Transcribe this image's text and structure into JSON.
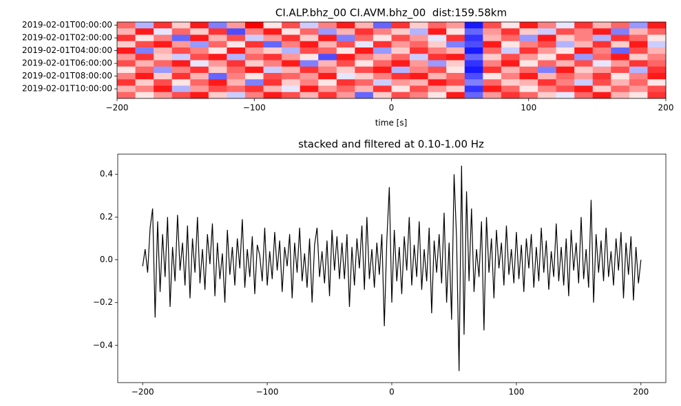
{
  "chart_data": [
    {
      "type": "heatmap",
      "title": "CI.ALP.bhz_00 CI.AVM.bhz_00  dist:159.58km",
      "x_label": "time [s]",
      "colormap": "bwr",
      "categories": [
        "2019-02-01T00:00:00",
        null,
        "2019-02-01T02:00:00",
        null,
        "2019-02-01T04:00:00",
        null,
        "2019-02-01T06:00:00",
        null,
        "2019-02-01T08:00:00",
        null,
        "2019-02-01T10:00:00",
        null
      ],
      "xlim": [
        -200,
        200
      ],
      "xticks": [
        {
          "value": -200,
          "label": "−200"
        },
        {
          "value": -100,
          "label": "−100"
        },
        0,
        100,
        200
      ],
      "values": [
        [
          0.6,
          -0.3,
          0.8,
          0.2,
          0.9,
          -0.5,
          0.4,
          1.0,
          0.1,
          0.7,
          -0.2,
          0.5,
          0.9,
          0.3,
          -0.6,
          0.8,
          0.2,
          0.6,
          0.4,
          -0.9,
          0.7,
          0.1,
          0.9,
          0.5,
          -0.1,
          0.8,
          0.3,
          0.6,
          -0.4,
          0.9
        ],
        [
          0.3,
          0.9,
          -0.1,
          0.6,
          0.2,
          0.8,
          -0.7,
          0.5,
          0.9,
          0.1,
          0.6,
          -0.4,
          0.3,
          0.8,
          0.5,
          0.2,
          -0.3,
          0.9,
          0.1,
          -0.6,
          0.4,
          0.8,
          0.2,
          -0.2,
          0.7,
          0.5,
          0.9,
          -0.5,
          0.3,
          0.6
        ],
        [
          0.8,
          0.1,
          0.5,
          -0.6,
          0.9,
          0.3,
          0.7,
          -0.2,
          0.4,
          0.8,
          0.2,
          0.9,
          -0.5,
          0.6,
          0.1,
          0.7,
          0.4,
          -0.1,
          0.8,
          -0.8,
          0.3,
          0.6,
          -0.4,
          0.9,
          0.2,
          0.5,
          -0.3,
          0.8,
          0.6,
          0.1
        ],
        [
          0.2,
          0.7,
          0.9,
          0.4,
          -0.4,
          0.6,
          0.1,
          0.8,
          -0.6,
          0.5,
          0.9,
          0.3,
          0.7,
          -0.1,
          0.8,
          0.4,
          0.6,
          0.2,
          -0.5,
          -0.7,
          0.9,
          0.1,
          0.5,
          0.7,
          -0.3,
          0.3,
          0.8,
          0.2,
          0.9,
          -0.2
        ],
        [
          0.9,
          -0.5,
          0.3,
          0.7,
          0.5,
          0.1,
          0.9,
          0.4,
          0.2,
          -0.3,
          0.7,
          0.6,
          0.1,
          0.9,
          -0.4,
          0.2,
          0.8,
          0.5,
          0.3,
          -0.9,
          0.6,
          -0.2,
          0.8,
          0.4,
          0.1,
          0.9,
          0.5,
          -0.6,
          0.7,
          0.3
        ],
        [
          0.4,
          0.8,
          0.2,
          -0.2,
          0.7,
          0.9,
          -0.3,
          0.6,
          0.8,
          0.4,
          0.1,
          -0.7,
          0.9,
          0.5,
          0.3,
          0.6,
          -0.2,
          0.8,
          0.9,
          -0.6,
          0.2,
          0.7,
          0.4,
          0.1,
          0.8,
          -0.4,
          0.6,
          0.9,
          0.2,
          0.5
        ],
        [
          0.7,
          0.3,
          0.6,
          0.9,
          -0.1,
          0.4,
          0.8,
          0.2,
          0.5,
          0.9,
          -0.5,
          0.3,
          0.7,
          0.1,
          0.6,
          0.9,
          0.4,
          -0.4,
          0.2,
          -0.8,
          0.5,
          0.9,
          0.1,
          0.6,
          0.3,
          0.7,
          -0.1,
          0.4,
          0.8,
          0.6
        ],
        [
          0.1,
          0.6,
          -0.4,
          0.5,
          0.8,
          0.2,
          0.6,
          0.9,
          -0.2,
          0.3,
          0.8,
          0.5,
          0.2,
          0.7,
          0.9,
          -0.3,
          0.5,
          0.7,
          0.1,
          -0.9,
          0.8,
          0.3,
          0.6,
          -0.5,
          0.9,
          0.2,
          0.4,
          0.7,
          -0.3,
          0.8
        ],
        [
          0.5,
          0.9,
          0.2,
          0.8,
          0.3,
          -0.6,
          0.5,
          0.1,
          0.7,
          0.6,
          0.4,
          0.9,
          -0.1,
          0.2,
          0.5,
          0.8,
          0.9,
          0.3,
          0.6,
          -0.7,
          0.1,
          0.5,
          0.9,
          0.3,
          0.6,
          0.4,
          0.8,
          0.1,
          0.5,
          0.9
        ],
        [
          0.8,
          0.2,
          0.7,
          0.1,
          0.6,
          0.9,
          0.3,
          -0.5,
          0.8,
          0.2,
          0.5,
          0.1,
          0.8,
          0.6,
          -0.2,
          0.4,
          0.3,
          0.9,
          0.7,
          -0.5,
          0.6,
          0.2,
          0.3,
          0.8,
          0.5,
          -0.2,
          0.7,
          0.3,
          0.6,
          0.1
        ],
        [
          0.3,
          0.5,
          0.9,
          -0.3,
          0.4,
          0.7,
          0.6,
          0.8,
          0.3,
          -0.1,
          0.9,
          0.4,
          0.6,
          0.3,
          0.8,
          0.1,
          0.7,
          0.4,
          0.2,
          -0.8,
          0.9,
          0.6,
          0.1,
          0.5,
          0.7,
          0.9,
          0.2,
          0.6,
          0.4,
          0.7
        ],
        [
          0.6,
          0.1,
          0.4,
          0.7,
          0.9,
          0.2,
          -0.2,
          0.5,
          0.9,
          0.7,
          0.3,
          0.8,
          0.4,
          -0.6,
          0.2,
          0.7,
          0.5,
          0.1,
          0.9,
          -0.6,
          0.4,
          0.8,
          0.6,
          0.2,
          -0.1,
          0.6,
          0.9,
          0.3,
          0.1,
          0.8
        ]
      ]
    },
    {
      "type": "line",
      "title": "stacked and filtered at 0.10-1.00 Hz",
      "color": "#000000",
      "xlim": [
        -220,
        220
      ],
      "xticks": [
        {
          "value": -200,
          "label": "−200"
        },
        {
          "value": -100,
          "label": "−100"
        },
        0,
        100,
        200
      ],
      "ylim": [
        -0.574,
        0.494
      ],
      "yticks": [
        {
          "value": -0.4,
          "label": "−0.4"
        },
        {
          "value": -0.2,
          "label": "−0.2"
        },
        {
          "value": 0,
          "label": "0.0"
        },
        0.2,
        0.4
      ],
      "x": [
        -200,
        -198,
        -196,
        -194,
        -192,
        -190,
        -188,
        -186,
        -184,
        -182,
        -180,
        -178,
        -176,
        -174,
        -172,
        -170,
        -168,
        -166,
        -164,
        -162,
        -160,
        -158,
        -156,
        -154,
        -152,
        -150,
        -148,
        -146,
        -144,
        -142,
        -140,
        -138,
        -136,
        -134,
        -132,
        -130,
        -128,
        -126,
        -124,
        -122,
        -120,
        -118,
        -116,
        -114,
        -112,
        -110,
        -108,
        -106,
        -104,
        -102,
        -100,
        -98,
        -96,
        -94,
        -92,
        -90,
        -88,
        -86,
        -84,
        -82,
        -80,
        -78,
        -76,
        -74,
        -72,
        -70,
        -68,
        -66,
        -64,
        -62,
        -60,
        -58,
        -56,
        -54,
        -52,
        -50,
        -48,
        -46,
        -44,
        -42,
        -40,
        -38,
        -36,
        -34,
        -32,
        -30,
        -28,
        -26,
        -24,
        -22,
        -20,
        -18,
        -16,
        -14,
        -12,
        -10,
        -8,
        -6,
        -4,
        -2,
        0,
        2,
        4,
        6,
        8,
        10,
        12,
        14,
        16,
        18,
        20,
        22,
        24,
        26,
        28,
        30,
        32,
        34,
        36,
        38,
        40,
        42,
        44,
        46,
        48,
        50,
        52,
        54,
        56,
        58,
        60,
        62,
        64,
        66,
        68,
        70,
        72,
        74,
        76,
        78,
        80,
        82,
        84,
        86,
        88,
        90,
        92,
        94,
        96,
        98,
        100,
        102,
        104,
        106,
        108,
        110,
        112,
        114,
        116,
        118,
        120,
        122,
        124,
        126,
        128,
        130,
        132,
        134,
        136,
        138,
        140,
        142,
        144,
        146,
        148,
        150,
        152,
        154,
        156,
        158,
        160,
        162,
        164,
        166,
        168,
        170,
        172,
        174,
        176,
        178,
        180,
        182,
        184,
        186,
        188,
        190,
        192,
        194,
        196,
        198,
        200
      ],
      "values": [
        -0.03,
        0.05,
        -0.06,
        0.15,
        0.24,
        -0.27,
        0.18,
        -0.15,
        0.12,
        -0.08,
        0.2,
        -0.22,
        0.06,
        -0.1,
        0.21,
        -0.05,
        0.08,
        -0.12,
        0.16,
        -0.18,
        0.1,
        -0.06,
        0.2,
        -0.11,
        0.05,
        -0.14,
        0.12,
        -0.02,
        0.17,
        -0.17,
        0.08,
        -0.09,
        0.03,
        -0.2,
        0.14,
        -0.07,
        0.06,
        -0.12,
        0.1,
        -0.04,
        0.19,
        -0.13,
        0.05,
        -0.08,
        0.11,
        -0.16,
        0.07,
        0.02,
        -0.1,
        0.15,
        -0.12,
        0.04,
        -0.09,
        0.13,
        -0.05,
        0.09,
        -0.15,
        0.06,
        -0.03,
        0.12,
        -0.18,
        0.08,
        -0.06,
        0.15,
        -0.1,
        0.03,
        -0.13,
        0.1,
        -0.2,
        0.07,
        0.15,
        -0.08,
        0.04,
        -0.11,
        0.09,
        -0.17,
        0.14,
        -0.05,
        0.11,
        -0.09,
        0.08,
        -0.09,
        0.12,
        -0.22,
        0.06,
        -0.12,
        0.1,
        -0.04,
        0.16,
        -0.14,
        0.2,
        -0.09,
        0.05,
        -0.13,
        0.08,
        -0.07,
        0.12,
        -0.31,
        0.09,
        0.34,
        -0.2,
        0.14,
        -0.1,
        0.06,
        -0.16,
        0.11,
        -0.05,
        0.2,
        -0.12,
        0.07,
        -0.08,
        0.18,
        -0.14,
        0.05,
        -0.1,
        0.15,
        -0.25,
        0.09,
        -0.06,
        0.12,
        -0.11,
        0.22,
        -0.2,
        0.08,
        -0.28,
        0.4,
        0.1,
        -0.52,
        0.44,
        -0.35,
        0.32,
        -0.1,
        0.24,
        -0.15,
        0.05,
        -0.08,
        0.18,
        -0.33,
        0.2,
        -0.06,
        0.1,
        -0.18,
        0.14,
        -0.04,
        0.08,
        -0.12,
        0.16,
        -0.07,
        0.05,
        -0.11,
        0.13,
        -0.09,
        0.07,
        -0.15,
        0.1,
        -0.04,
        0.12,
        -0.13,
        0.06,
        -0.1,
        0.15,
        -0.06,
        0.09,
        -0.14,
        0.04,
        -0.08,
        0.17,
        -0.1,
        0.06,
        -0.12,
        0.1,
        -0.17,
        0.14,
        -0.05,
        0.08,
        -0.11,
        0.2,
        -0.09,
        0.05,
        -0.13,
        0.28,
        -0.2,
        0.12,
        -0.06,
        0.09,
        -0.1,
        0.15,
        -0.08,
        0.04,
        -0.12,
        0.1,
        -0.05,
        0.13,
        -0.18,
        0.08,
        -0.07,
        0.11,
        -0.19,
        0.06,
        -0.11,
        0.0
      ]
    }
  ]
}
